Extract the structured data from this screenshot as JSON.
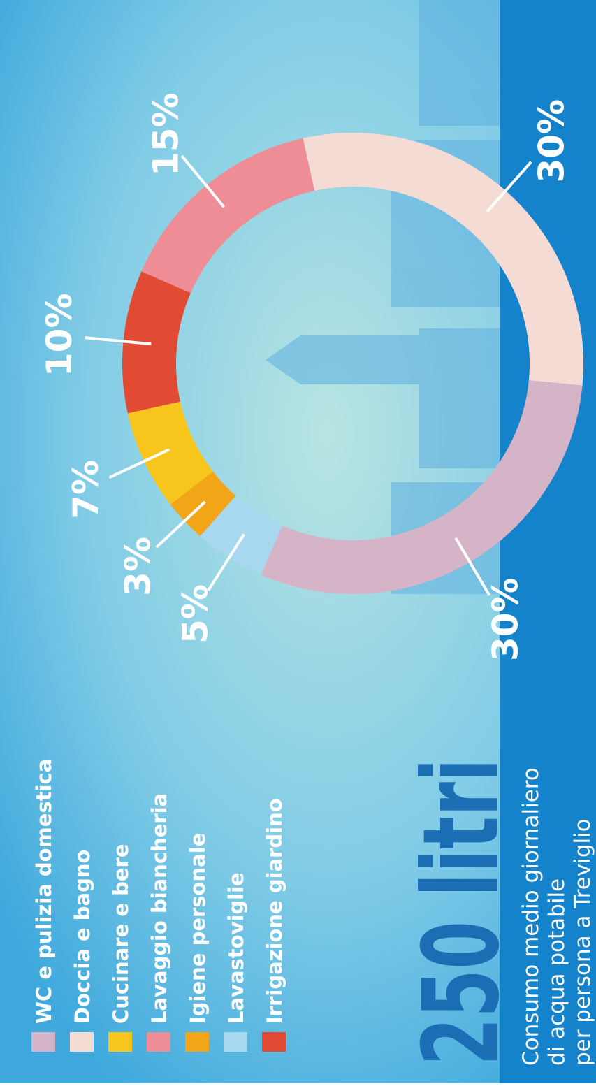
{
  "chart_data": {
    "type": "donut",
    "title": "250 litri",
    "subtitle": [
      "Consumo medio giornaliero",
      "di acqua potabile",
      "per persona a Treviglio"
    ],
    "categories": [
      "WC e pulizia domestica",
      "Doccia e bagno",
      "Cucinare e bere",
      "Lavaggio biancheria",
      "Igiene personale",
      "Lavastoviglie",
      "Irrigazione giardino"
    ],
    "values": [
      30,
      30,
      7,
      15,
      3,
      5,
      10
    ],
    "value_labels": [
      "30%",
      "30%",
      "7%",
      "15%",
      "3%",
      "5%",
      "10%"
    ],
    "colors": [
      "#d4b4c6",
      "#f4dcd4",
      "#f8c51c",
      "#ef8d96",
      "#f2a617",
      "#a8d8f0",
      "#e14b33"
    ],
    "legend": "top-left"
  }
}
